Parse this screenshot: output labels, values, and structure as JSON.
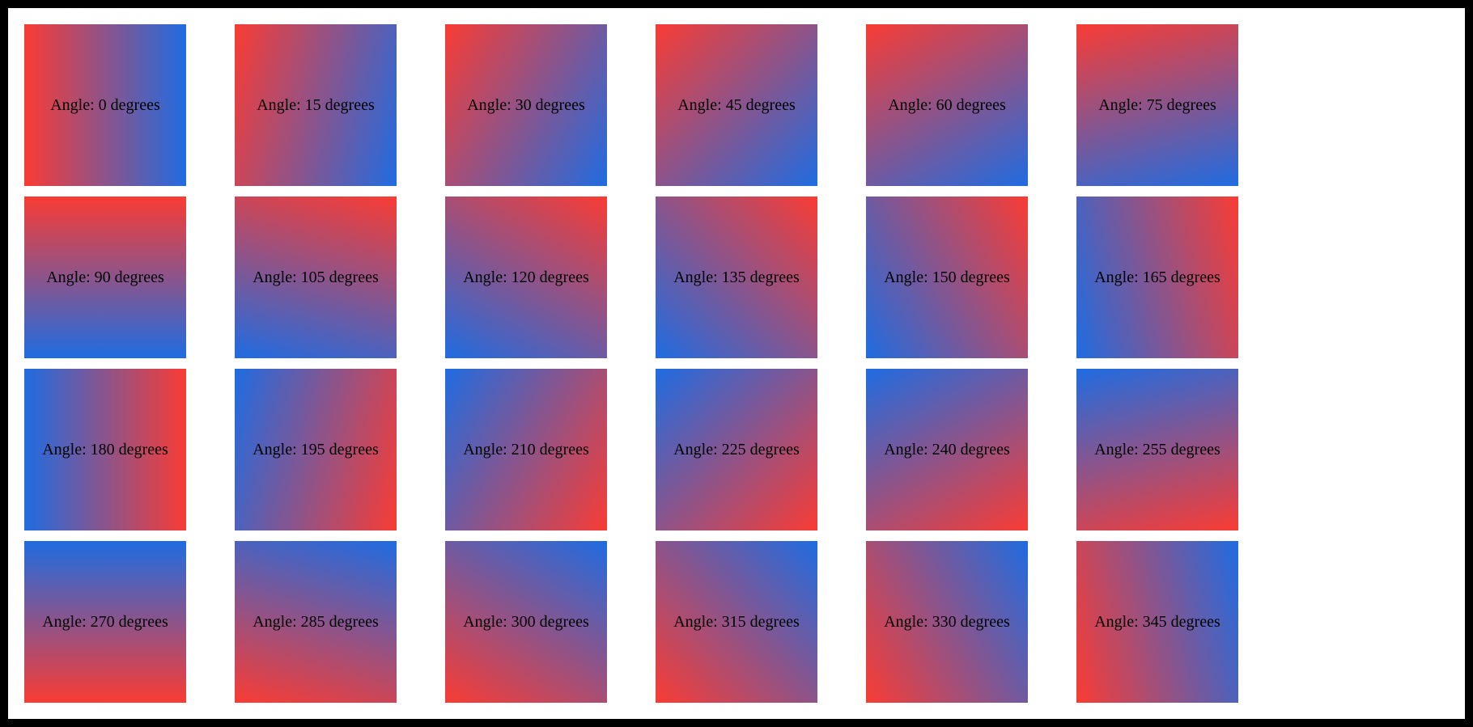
{
  "page": {
    "frame_color": "#000000",
    "background_color": "#ffffff",
    "text_color": "#000000"
  },
  "gradient": {
    "start_color": "#f93c34",
    "end_color": "#1f6ce1",
    "rotation_offset_css_deg": 90
  },
  "swatches": {
    "label_prefix": "Angle: ",
    "label_suffix": " degrees",
    "angles": [
      0,
      15,
      30,
      45,
      60,
      75,
      90,
      105,
      120,
      135,
      150,
      165,
      180,
      195,
      210,
      225,
      240,
      255,
      270,
      285,
      300,
      315,
      330,
      345
    ],
    "labels": [
      "Angle: 0 degrees",
      "Angle: 15 degrees",
      "Angle: 30 degrees",
      "Angle: 45 degrees",
      "Angle: 60 degrees",
      "Angle: 75 degrees",
      "Angle: 90 degrees",
      "Angle: 105 degrees",
      "Angle: 120 degrees",
      "Angle: 135 degrees",
      "Angle: 150 degrees",
      "Angle: 165 degrees",
      "Angle: 180 degrees",
      "Angle: 195 degrees",
      "Angle: 210 degrees",
      "Angle: 225 degrees",
      "Angle: 240 degrees",
      "Angle: 255 degrees",
      "Angle: 270 degrees",
      "Angle: 285 degrees",
      "Angle: 300 degrees",
      "Angle: 315 degrees",
      "Angle: 330 degrees",
      "Angle: 345 degrees"
    ]
  }
}
